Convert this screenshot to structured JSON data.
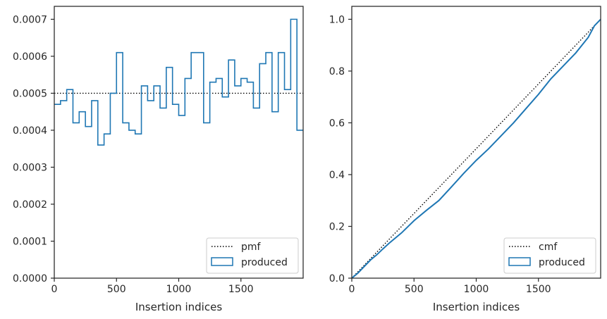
{
  "chart_data": [
    {
      "type": "histogram-step",
      "xlabel": "Insertion indices",
      "xlim": [
        0,
        2000
      ],
      "ylim": [
        0,
        0.000735
      ],
      "xticks": [
        0,
        500,
        1000,
        1500
      ],
      "xtick_labels": [
        "0",
        "500",
        "1000",
        "1500"
      ],
      "yticks": [
        0,
        0.0001,
        0.0002,
        0.0003,
        0.0004,
        0.0005,
        0.0006,
        0.0007
      ],
      "ytick_labels": [
        "0.0000",
        "0.0001",
        "0.0002",
        "0.0003",
        "0.0004",
        "0.0005",
        "0.0006",
        "0.0007"
      ],
      "legend_position": "lower-right",
      "series": [
        {
          "name": "pmf",
          "style": "dotted",
          "color": "#000000",
          "x": [
            0,
            2000
          ],
          "y": [
            0.0005,
            0.0005
          ]
        },
        {
          "name": "produced",
          "style": "step",
          "color": "#1f77b4",
          "bin_width": 50,
          "bin_starts": [
            0,
            50,
            100,
            150,
            200,
            250,
            300,
            350,
            400,
            450,
            500,
            550,
            600,
            650,
            700,
            750,
            800,
            850,
            900,
            950,
            1000,
            1050,
            1100,
            1150,
            1200,
            1250,
            1300,
            1350,
            1400,
            1450,
            1500,
            1550,
            1600,
            1650,
            1700,
            1750,
            1800,
            1850,
            1900,
            1950
          ],
          "values": [
            0.00047,
            0.00048,
            0.00051,
            0.00042,
            0.00045,
            0.00041,
            0.00048,
            0.00036,
            0.00039,
            0.0005,
            0.00061,
            0.00042,
            0.0004,
            0.00039,
            0.00052,
            0.00048,
            0.00052,
            0.00046,
            0.00057,
            0.00047,
            0.00044,
            0.00054,
            0.00061,
            0.00061,
            0.00042,
            0.00053,
            0.00054,
            0.00049,
            0.00059,
            0.00052,
            0.00054,
            0.00053,
            0.00046,
            0.00058,
            0.00061,
            0.00045,
            0.00061,
            0.00051,
            0.0007,
            0.0004
          ]
        }
      ]
    },
    {
      "type": "line",
      "xlabel": "Insertion indices",
      "xlim": [
        0,
        2000
      ],
      "ylim": [
        0,
        1.05
      ],
      "xticks": [
        0,
        500,
        1000,
        1500
      ],
      "xtick_labels": [
        "0",
        "500",
        "1000",
        "1500"
      ],
      "yticks": [
        0,
        0.2,
        0.4,
        0.6,
        0.8,
        1.0
      ],
      "ytick_labels": [
        "0.0",
        "0.2",
        "0.4",
        "0.6",
        "0.8",
        "1.0"
      ],
      "legend_position": "lower-right",
      "series": [
        {
          "name": "cmf",
          "style": "dotted",
          "color": "#000000",
          "x": [
            0,
            2000
          ],
          "y": [
            0,
            1.0
          ]
        },
        {
          "name": "produced",
          "style": "line",
          "color": "#1f77b4",
          "x": [
            0,
            50,
            100,
            150,
            200,
            250,
            300,
            400,
            500,
            600,
            700,
            800,
            900,
            1000,
            1100,
            1200,
            1300,
            1400,
            1500,
            1600,
            1700,
            1800,
            1900,
            1950,
            2000
          ],
          "y": [
            0,
            0.02,
            0.045,
            0.07,
            0.09,
            0.113,
            0.135,
            0.175,
            0.222,
            0.262,
            0.3,
            0.352,
            0.405,
            0.455,
            0.5,
            0.55,
            0.6,
            0.655,
            0.71,
            0.77,
            0.82,
            0.87,
            0.93,
            0.975,
            1.0
          ]
        }
      ]
    }
  ]
}
